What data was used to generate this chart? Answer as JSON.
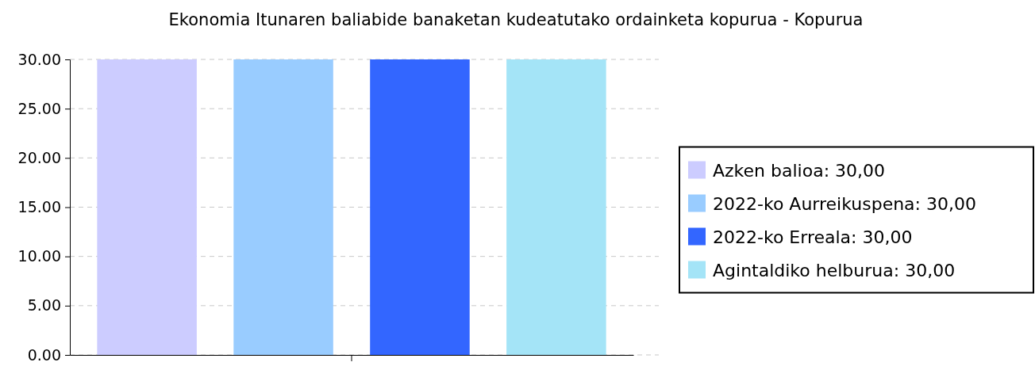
{
  "chart_data": {
    "type": "bar",
    "title": "Ekonomia Itunaren baliabide banaketan kudeatutako ordainketa kopurua - Kopurua",
    "categories": [
      null
    ],
    "series": [
      {
        "name": "Azken balioa: 30,00",
        "color": "#ccccff",
        "values": [
          30
        ]
      },
      {
        "name": "2022-ko Aurreikuspena: 30,00",
        "color": "#99ccff",
        "values": [
          30
        ]
      },
      {
        "name": "2022-ko Erreala: 30,00",
        "color": "#3366ff",
        "values": [
          30
        ]
      },
      {
        "name": "Agintaldiko helburua: 30,00",
        "color": "#a4e4f7",
        "values": [
          30
        ]
      }
    ],
    "ylim": [
      0,
      30
    ],
    "yticks": [
      {
        "value": 0,
        "label": "0.00"
      },
      {
        "value": 5,
        "label": "5.00"
      },
      {
        "value": 10,
        "label": "10.00"
      },
      {
        "value": 15,
        "label": "15.00"
      },
      {
        "value": 20,
        "label": "20.00"
      },
      {
        "value": 25,
        "label": "25.00"
      },
      {
        "value": 30,
        "label": "30.00"
      }
    ],
    "grid": "y",
    "legend": "right"
  }
}
